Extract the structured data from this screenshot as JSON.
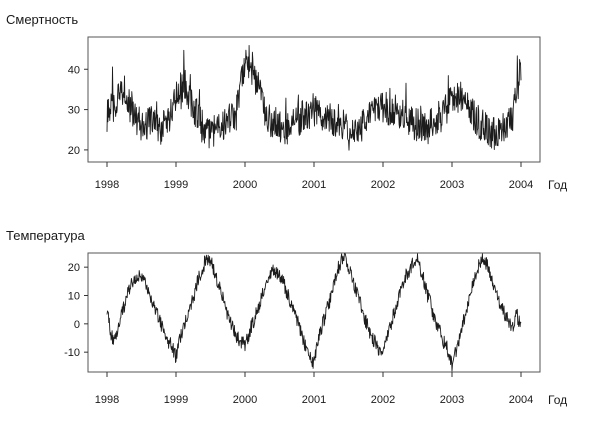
{
  "chart_data": [
    {
      "type": "line",
      "title": "Смертность",
      "xlabel": "Год",
      "ylabel": "",
      "x_ticks": [
        "1998",
        "1999",
        "2000",
        "2001",
        "2002",
        "2003",
        "2004"
      ],
      "y_ticks": [
        "20",
        "30",
        "40"
      ],
      "xlim": [
        1998,
        2004
      ],
      "ylim": [
        17,
        48
      ],
      "grid": false,
      "series": [
        {
          "color": "#1c1c1c",
          "x": [
            1998.0,
            1998.125,
            1998.25,
            1998.375,
            1998.5,
            1998.625,
            1998.75,
            1998.875,
            1999.0,
            1999.125,
            1999.25,
            1999.375,
            1999.5,
            1999.625,
            1999.75,
            1999.875,
            2000.0,
            2000.125,
            2000.25,
            2000.375,
            2000.5,
            2000.625,
            2000.75,
            2000.875,
            2001.0,
            2001.125,
            2001.25,
            2001.375,
            2001.5,
            2001.625,
            2001.75,
            2001.875,
            2002.0,
            2002.125,
            2002.25,
            2002.375,
            2002.5,
            2002.625,
            2002.75,
            2002.875,
            2003.0,
            2003.125,
            2003.25,
            2003.375,
            2003.5,
            2003.625,
            2003.75,
            2003.875,
            2004.0
          ],
          "values": [
            28,
            32,
            35,
            29,
            26,
            27,
            25,
            27,
            33,
            37,
            31,
            26,
            24,
            25,
            27,
            29,
            42,
            40,
            31,
            27,
            26,
            25,
            27,
            29,
            30,
            29,
            28,
            27,
            24,
            25,
            27,
            29,
            31,
            30,
            29,
            27,
            26,
            25,
            27,
            29,
            32,
            34,
            30,
            27,
            25,
            24,
            26,
            27,
            41
          ]
        }
      ]
    },
    {
      "type": "line",
      "title": "Температура",
      "xlabel": "Год",
      "ylabel": "",
      "x_ticks": [
        "1998",
        "1999",
        "2000",
        "2001",
        "2002",
        "2003",
        "2004"
      ],
      "y_ticks": [
        "-10",
        "0",
        "10",
        "20"
      ],
      "xlim": [
        1998,
        2004
      ],
      "ylim": [
        -17,
        25
      ],
      "grid": false,
      "series": [
        {
          "color": "#1c1c1c",
          "x": [
            1998.0,
            1998.0625,
            1998.125,
            1998.1875,
            1998.25,
            1998.3125,
            1998.375,
            1998.4375,
            1998.5,
            1998.5625,
            1998.625,
            1998.6875,
            1998.75,
            1998.8125,
            1998.875,
            1998.9375,
            1999.0,
            1999.0625,
            1999.125,
            1999.1875,
            1999.25,
            1999.3125,
            1999.375,
            1999.4375,
            1999.5,
            1999.5625,
            1999.625,
            1999.6875,
            1999.75,
            1999.8125,
            1999.875,
            1999.9375,
            2000.0,
            2000.0625,
            2000.125,
            2000.1875,
            2000.25,
            2000.3125,
            2000.375,
            2000.4375,
            2000.5,
            2000.5625,
            2000.625,
            2000.6875,
            2000.75,
            2000.8125,
            2000.875,
            2000.9375,
            2001.0,
            2001.0625,
            2001.125,
            2001.1875,
            2001.25,
            2001.3125,
            2001.375,
            2001.4375,
            2001.5,
            2001.5625,
            2001.625,
            2001.6875,
            2001.75,
            2001.8125,
            2001.875,
            2001.9375,
            2002.0,
            2002.0625,
            2002.125,
            2002.1875,
            2002.25,
            2002.3125,
            2002.375,
            2002.4375,
            2002.5,
            2002.5625,
            2002.625,
            2002.6875,
            2002.75,
            2002.8125,
            2002.875,
            2002.9375,
            2003.0,
            2003.0625,
            2003.125,
            2003.1875,
            2003.25,
            2003.3125,
            2003.375,
            2003.4375,
            2003.5,
            2003.5625,
            2003.625,
            2003.6875,
            2003.75,
            2003.8125,
            2003.875,
            2003.9375,
            2004.0
          ],
          "values": [
            4,
            -4,
            -6,
            2,
            6,
            12,
            15,
            17,
            16,
            14,
            10,
            5,
            2,
            -2,
            -6,
            -8,
            -12,
            -5,
            0,
            4,
            9,
            15,
            19,
            23,
            22,
            18,
            13,
            8,
            3,
            -1,
            -4,
            -6,
            -8,
            -3,
            1,
            5,
            10,
            15,
            18,
            19,
            17,
            14,
            10,
            6,
            2,
            -3,
            -8,
            -11,
            -14,
            -6,
            0,
            5,
            10,
            17,
            21,
            24,
            20,
            15,
            11,
            6,
            1,
            -3,
            -6,
            -9,
            -11,
            -4,
            1,
            6,
            11,
            16,
            19,
            22,
            23,
            18,
            12,
            7,
            2,
            -2,
            -6,
            -9,
            -15,
            -9,
            -3,
            3,
            9,
            15,
            20,
            23,
            21,
            17,
            12,
            8,
            4,
            1,
            -1,
            3,
            0
          ]
        }
      ]
    }
  ]
}
